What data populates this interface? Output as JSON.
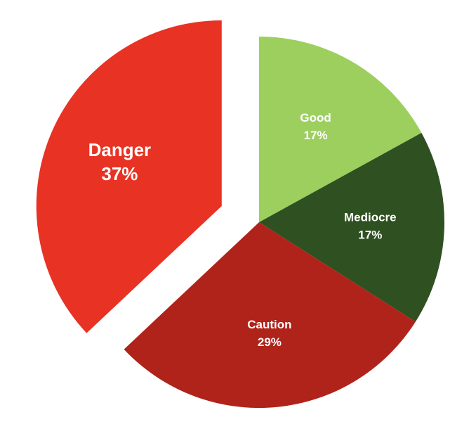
{
  "chart_data": {
    "type": "pie",
    "exploded": [
      "Danger"
    ],
    "slices": [
      {
        "label": "Good",
        "value": 17,
        "display": "17%",
        "color": "#9dcf5f"
      },
      {
        "label": "Mediocre",
        "value": 17,
        "display": "17%",
        "color": "#2f5020"
      },
      {
        "label": "Caution",
        "value": 29,
        "display": "29%",
        "color": "#b0231a"
      },
      {
        "label": "Danger",
        "value": 37,
        "display": "37%",
        "color": "#e83223"
      }
    ]
  }
}
